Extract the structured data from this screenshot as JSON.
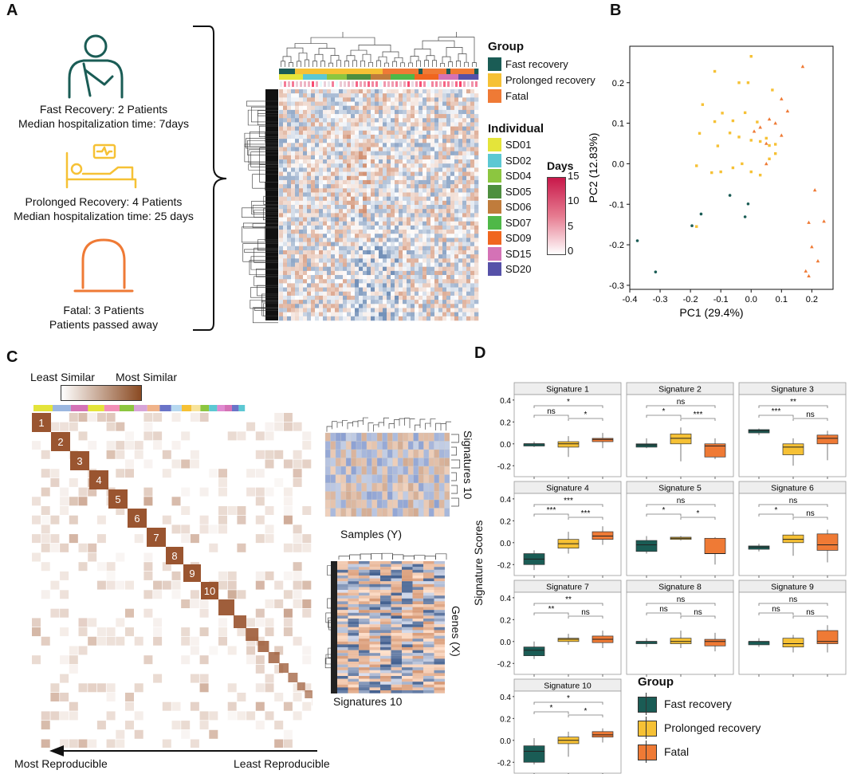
{
  "panels": {
    "a": "A",
    "b": "B",
    "c": "C",
    "d": "D"
  },
  "panel_a": {
    "fast": {
      "line1": "Fast Recovery: 2 Patients",
      "line2": "Median hospitalization time: 7days"
    },
    "prolonged": {
      "line1": "Prolonged Recovery: 4 Patients",
      "line2": "Median hospitalization time: 25 days"
    },
    "fatal": {
      "line1": "Fatal: 3 Patients",
      "line2": "Patients passed away"
    },
    "group_legend": {
      "title": "Group",
      "items": [
        {
          "label": "Fast recovery",
          "color": "#1a5c55"
        },
        {
          "label": "Prolonged recovery",
          "color": "#f6c135"
        },
        {
          "label": "Fatal",
          "color": "#ef7a35"
        }
      ]
    },
    "individual_legend": {
      "title": "Individual",
      "items": [
        {
          "label": "SD01",
          "color": "#e4e43a"
        },
        {
          "label": "SD02",
          "color": "#5cc8d3"
        },
        {
          "label": "SD04",
          "color": "#8cc640"
        },
        {
          "label": "SD05",
          "color": "#4e8f3f"
        },
        {
          "label": "SD06",
          "color": "#c07c3c"
        },
        {
          "label": "SD07",
          "color": "#4fb848"
        },
        {
          "label": "SD09",
          "color": "#f0661f"
        },
        {
          "label": "SD15",
          "color": "#d472b6"
        },
        {
          "label": "SD20",
          "color": "#5651a8"
        }
      ]
    },
    "days_legend": {
      "title": "Days",
      "ticks": [
        "15",
        "10",
        "5",
        "0"
      ]
    }
  },
  "panel_b": {
    "chart_data": {
      "type": "scatter",
      "xlabel": "PC1 (29.4%)",
      "ylabel": "PC2 (12.83%)",
      "xlim": [
        -0.4,
        0.27
      ],
      "ylim": [
        -0.31,
        0.29
      ],
      "xticks": [
        "-0.4",
        "-0.3",
        "-0.2",
        "-0.1",
        "0.0",
        "0.1",
        "0.2"
      ],
      "yticks": [
        "0.2",
        "0.1",
        "0.0",
        "-0.1",
        "-0.2",
        "-0.3"
      ],
      "series": [
        {
          "name": "Fast recovery",
          "color": "#1a5c55",
          "points": [
            [
              -0.375,
              -0.19
            ],
            [
              -0.315,
              -0.267
            ],
            [
              -0.195,
              -0.153
            ],
            [
              -0.165,
              -0.124
            ],
            [
              -0.07,
              -0.078
            ],
            [
              -0.02,
              -0.131
            ],
            [
              -0.01,
              -0.099
            ]
          ]
        },
        {
          "name": "Prolonged recovery",
          "color": "#f6c135",
          "points": [
            [
              0.0,
              0.265
            ],
            [
              -0.16,
              0.146
            ],
            [
              -0.12,
              0.228
            ],
            [
              -0.095,
              0.125
            ],
            [
              -0.04,
              0.2
            ],
            [
              -0.01,
              0.2
            ],
            [
              0.07,
              0.182
            ],
            [
              -0.02,
              0.126
            ],
            [
              -0.06,
              0.106
            ],
            [
              0.02,
              0.103
            ],
            [
              -0.07,
              0.076
            ],
            [
              -0.04,
              0.066
            ],
            [
              0.0,
              0.058
            ],
            [
              0.03,
              0.055
            ],
            [
              0.05,
              0.063
            ],
            [
              0.06,
              0.045
            ],
            [
              0.08,
              0.048
            ],
            [
              -0.11,
              0.044
            ],
            [
              -0.17,
              0.075
            ],
            [
              -0.18,
              -0.005
            ],
            [
              -0.13,
              -0.022
            ],
            [
              -0.1,
              -0.02
            ],
            [
              -0.06,
              -0.01
            ],
            [
              -0.03,
              0.0
            ],
            [
              0.0,
              -0.02
            ],
            [
              0.03,
              -0.028
            ],
            [
              0.06,
              0.012
            ],
            [
              0.08,
              0.025
            ],
            [
              -0.12,
              0.104
            ],
            [
              -0.18,
              -0.155
            ]
          ]
        },
        {
          "name": "Fatal",
          "color": "#ef7a35",
          "points": [
            [
              0.17,
              0.24
            ],
            [
              0.1,
              0.16
            ],
            [
              0.12,
              0.13
            ],
            [
              0.06,
              0.11
            ],
            [
              0.05,
              0.05
            ],
            [
              0.01,
              0.08
            ],
            [
              0.03,
              0.09
            ],
            [
              0.05,
              0.0
            ],
            [
              0.08,
              0.1
            ],
            [
              0.1,
              0.07
            ],
            [
              0.21,
              -0.065
            ],
            [
              0.19,
              -0.145
            ],
            [
              0.24,
              -0.142
            ],
            [
              0.2,
              -0.205
            ],
            [
              0.22,
              -0.24
            ],
            [
              0.18,
              -0.265
            ],
            [
              0.19,
              -0.277
            ]
          ]
        }
      ]
    }
  },
  "panel_c": {
    "sim_legend": {
      "least": "Least Similar",
      "most": "Most Similar"
    },
    "block_labels": [
      "1",
      "2",
      "3",
      "4",
      "5",
      "6",
      "7",
      "8",
      "9",
      "10"
    ],
    "samples_label": "Samples (Y)",
    "signatures_label_right": "Signatures 10",
    "genes_label": "Genes (X)",
    "signatures_label_bottom": "Signatures 10",
    "arrow_left": "Most Reproducible",
    "arrow_right": "Least Reproducible"
  },
  "panel_d": {
    "ylabel": "Signature Scores",
    "yticks": [
      "0.4",
      "0.2",
      "0.0",
      "-0.2"
    ],
    "legend": {
      "title": "Group",
      "items": [
        {
          "label": "Fast recovery",
          "color": "#1a5c55"
        },
        {
          "label": "Prolonged recovery",
          "color": "#f6c135"
        },
        {
          "label": "Fatal",
          "color": "#ef7a35"
        }
      ]
    },
    "chart_data": [
      {
        "type": "box",
        "title": "Signature 1",
        "groups": [
          "Fast recovery",
          "Prolonged recovery",
          "Fatal"
        ],
        "q": [
          [
            -0.03,
            -0.02,
            0.0,
            0.0,
            0.02
          ],
          [
            -0.12,
            -0.03,
            0.0,
            0.02,
            0.07
          ],
          [
            -0.04,
            0.02,
            0.04,
            0.05,
            0.1
          ]
        ],
        "sig": [
          {
            "a": 0,
            "b": 1,
            "label": "ns"
          },
          {
            "a": 1,
            "b": 2,
            "label": "*"
          },
          {
            "a": 0,
            "b": 2,
            "label": "*"
          }
        ]
      },
      {
        "type": "box",
        "title": "Signature 2",
        "groups": [
          "Fast recovery",
          "Prolonged recovery",
          "Fatal"
        ],
        "q": [
          [
            -0.04,
            -0.03,
            -0.01,
            0.0,
            0.05
          ],
          [
            -0.16,
            0.0,
            0.05,
            0.09,
            0.15
          ],
          [
            -0.14,
            -0.12,
            -0.02,
            0.0,
            0.05
          ]
        ],
        "sig": [
          {
            "a": 0,
            "b": 1,
            "label": "*"
          },
          {
            "a": 1,
            "b": 2,
            "label": "***"
          },
          {
            "a": 0,
            "b": 2,
            "label": "ns"
          }
        ]
      },
      {
        "type": "box",
        "title": "Signature 3",
        "groups": [
          "Fast recovery",
          "Prolonged recovery",
          "Fatal"
        ],
        "q": [
          [
            0.08,
            0.1,
            0.12,
            0.13,
            0.14
          ],
          [
            -0.2,
            -0.1,
            -0.03,
            0.0,
            0.05
          ],
          [
            -0.15,
            0.0,
            0.05,
            0.08,
            0.12
          ]
        ],
        "sig": [
          {
            "a": 0,
            "b": 1,
            "label": "***"
          },
          {
            "a": 1,
            "b": 2,
            "label": "ns"
          },
          {
            "a": 0,
            "b": 2,
            "label": "**"
          }
        ]
      },
      {
        "type": "box",
        "title": "Signature 4",
        "groups": [
          "Fast recovery",
          "Prolonged recovery",
          "Fatal"
        ],
        "q": [
          [
            -0.25,
            -0.2,
            -0.15,
            -0.1,
            -0.07
          ],
          [
            -0.1,
            -0.05,
            -0.01,
            0.03,
            0.1
          ],
          [
            -0.02,
            0.03,
            0.06,
            0.1,
            0.15
          ]
        ],
        "sig": [
          {
            "a": 0,
            "b": 1,
            "label": "***"
          },
          {
            "a": 1,
            "b": 2,
            "label": "***"
          },
          {
            "a": 0,
            "b": 2,
            "label": "***"
          }
        ]
      },
      {
        "type": "box",
        "title": "Signature 5",
        "groups": [
          "Fast recovery",
          "Prolonged recovery",
          "Fatal"
        ],
        "q": [
          [
            -0.1,
            -0.08,
            -0.02,
            0.02,
            0.06
          ],
          [
            0.02,
            0.03,
            0.04,
            0.05,
            0.06
          ],
          [
            -0.2,
            -0.1,
            -0.1,
            0.04,
            0.05
          ]
        ],
        "sig": [
          {
            "a": 0,
            "b": 1,
            "label": "*"
          },
          {
            "a": 1,
            "b": 2,
            "label": "*"
          },
          {
            "a": 0,
            "b": 2,
            "label": "ns"
          }
        ]
      },
      {
        "type": "box",
        "title": "Signature 6",
        "groups": [
          "Fast recovery",
          "Prolonged recovery",
          "Fatal"
        ],
        "q": [
          [
            -0.08,
            -0.06,
            -0.04,
            -0.03,
            -0.01
          ],
          [
            -0.12,
            0.0,
            0.03,
            0.07,
            0.1
          ],
          [
            -0.18,
            -0.07,
            -0.02,
            0.08,
            0.12
          ]
        ],
        "sig": [
          {
            "a": 0,
            "b": 1,
            "label": "*"
          },
          {
            "a": 1,
            "b": 2,
            "label": "ns"
          },
          {
            "a": 0,
            "b": 2,
            "label": "ns"
          }
        ]
      },
      {
        "type": "box",
        "title": "Signature 7",
        "groups": [
          "Fast recovery",
          "Prolonged recovery",
          "Fatal"
        ],
        "q": [
          [
            -0.16,
            -0.13,
            -0.08,
            -0.05,
            0.0
          ],
          [
            -0.03,
            0.0,
            0.02,
            0.03,
            0.07
          ],
          [
            -0.06,
            -0.01,
            0.02,
            0.05,
            0.1
          ]
        ],
        "sig": [
          {
            "a": 0,
            "b": 1,
            "label": "**"
          },
          {
            "a": 1,
            "b": 2,
            "label": "ns"
          },
          {
            "a": 0,
            "b": 2,
            "label": "**"
          }
        ]
      },
      {
        "type": "box",
        "title": "Signature 8",
        "groups": [
          "Fast recovery",
          "Prolonged recovery",
          "Fatal"
        ],
        "q": [
          [
            -0.05,
            -0.02,
            0.0,
            0.0,
            0.03
          ],
          [
            -0.06,
            -0.02,
            0.0,
            0.03,
            0.1
          ],
          [
            -0.09,
            -0.04,
            0.0,
            0.02,
            0.08
          ]
        ],
        "sig": [
          {
            "a": 0,
            "b": 1,
            "label": "ns"
          },
          {
            "a": 1,
            "b": 2,
            "label": "ns"
          },
          {
            "a": 0,
            "b": 2,
            "label": "ns"
          }
        ]
      },
      {
        "type": "box",
        "title": "Signature 9",
        "groups": [
          "Fast recovery",
          "Prolonged recovery",
          "Fatal"
        ],
        "q": [
          [
            -0.05,
            -0.03,
            0.0,
            0.0,
            0.03
          ],
          [
            -0.1,
            -0.05,
            -0.02,
            0.03,
            0.06
          ],
          [
            -0.1,
            -0.02,
            0.0,
            0.1,
            0.15
          ]
        ],
        "sig": [
          {
            "a": 0,
            "b": 1,
            "label": "ns"
          },
          {
            "a": 1,
            "b": 2,
            "label": "ns"
          },
          {
            "a": 0,
            "b": 2,
            "label": "ns"
          }
        ]
      },
      {
        "type": "box",
        "title": "Signature 10",
        "groups": [
          "Fast recovery",
          "Prolonged recovery",
          "Fatal"
        ],
        "q": [
          [
            -0.22,
            -0.2,
            -0.1,
            -0.05,
            0.02
          ],
          [
            -0.15,
            -0.03,
            0.0,
            0.03,
            0.08
          ],
          [
            -0.02,
            0.03,
            0.05,
            0.08,
            0.11
          ]
        ],
        "sig": [
          {
            "a": 0,
            "b": 1,
            "label": "*"
          },
          {
            "a": 1,
            "b": 2,
            "label": "*"
          },
          {
            "a": 0,
            "b": 2,
            "label": "*"
          }
        ]
      }
    ]
  }
}
